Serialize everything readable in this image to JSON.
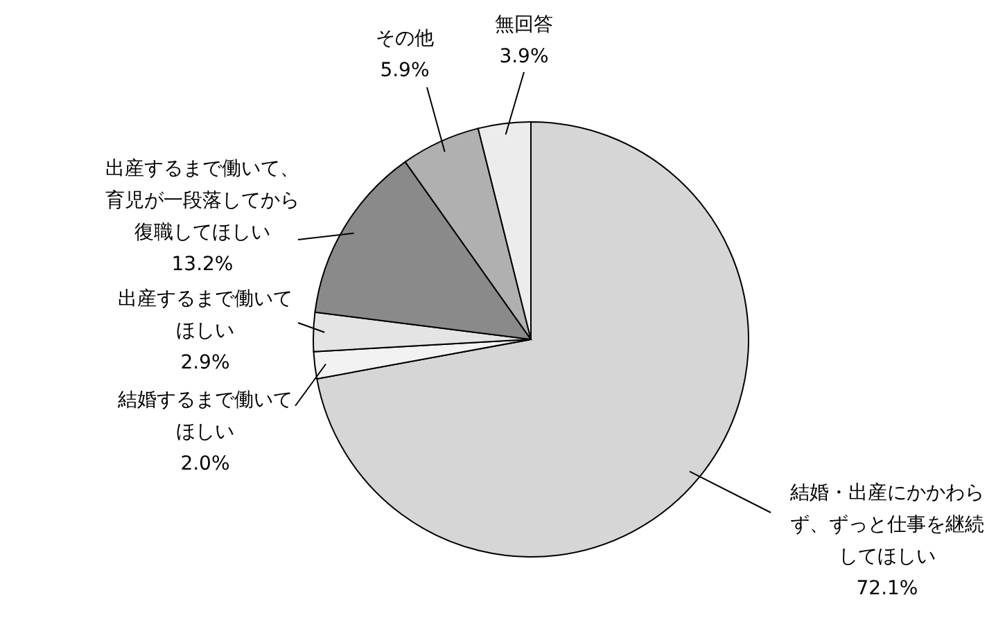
{
  "chart_data": {
    "type": "pie",
    "categories": [
      "結婚・出産にかかわらず、ずっと仕事を継続してほしい",
      "結婚するまで働いてほしい",
      "出産するまで働いてほしい",
      "出産するまで働いて、育児が一段落してから復職してほしい",
      "その他",
      "無回答"
    ],
    "values": [
      72.1,
      2.0,
      2.9,
      13.2,
      5.9,
      3.9
    ],
    "colors": [
      "#d6d6d6",
      "#f2f2f2",
      "#e4e4e4",
      "#8a8a8a",
      "#b0b0b0",
      "#ececec"
    ],
    "value_labels": [
      "72.1%",
      "2.0%",
      "2.9%",
      "13.2%",
      "5.9%",
      "3.9%"
    ]
  }
}
